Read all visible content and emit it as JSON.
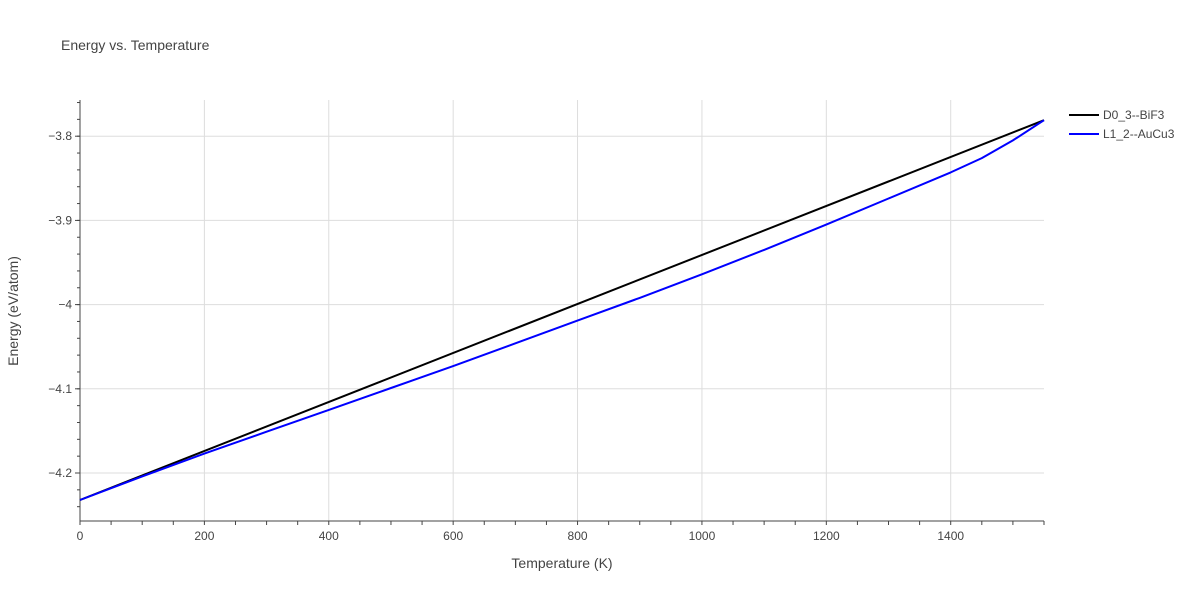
{
  "chart_data": {
    "type": "line",
    "title": "Energy vs. Temperature",
    "xlabel": "Temperature (K)",
    "ylabel": "Energy (eV/atom)",
    "xlim": [
      0,
      1550
    ],
    "ylim": [
      -4.257,
      -3.757
    ],
    "x_ticks": [
      0,
      200,
      400,
      600,
      800,
      1000,
      1200,
      1400
    ],
    "x_tick_labels": [
      "0",
      "200",
      "400",
      "600",
      "800",
      "1000",
      "1200",
      "1400"
    ],
    "y_ticks": [
      -3.8,
      -3.9,
      -4.0,
      -4.1,
      -4.2
    ],
    "y_tick_labels": [
      "−3.8",
      "−3.9",
      "−4",
      "−4.1",
      "−4.2"
    ],
    "grid": true,
    "legend_position": "top-right",
    "series": [
      {
        "name": "D0_3--BiF3",
        "color": "#000000",
        "x": [
          0,
          1550
        ],
        "y": [
          -4.232,
          -3.781
        ]
      },
      {
        "name": "L1_2--AuCu3",
        "color": "#0000ff",
        "x": [
          0,
          100,
          200,
          300,
          400,
          500,
          600,
          700,
          800,
          900,
          1000,
          1100,
          1200,
          1300,
          1400,
          1450,
          1500,
          1550
        ],
        "y": [
          -4.232,
          -4.204,
          -4.177,
          -4.151,
          -4.125,
          -4.099,
          -4.073,
          -4.046,
          -4.019,
          -3.992,
          -3.964,
          -3.935,
          -3.905,
          -3.874,
          -3.843,
          -3.826,
          -3.805,
          -3.781
        ]
      }
    ]
  }
}
